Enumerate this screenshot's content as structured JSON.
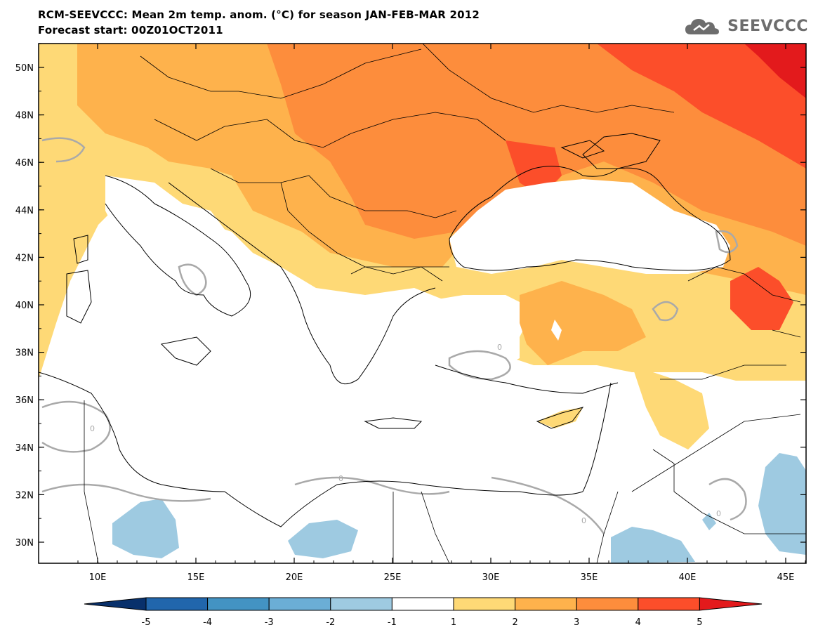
{
  "header": {
    "title": "RCM-SEEVCCC: Mean 2m temp. anom. (°C) for season JAN-FEB-MAR 2012",
    "subtitle": "Forecast start: 00Z01OCT2011",
    "logo_text": "SEEVCCC"
  },
  "map": {
    "lat_labels": [
      "50N",
      "48N",
      "46N",
      "44N",
      "42N",
      "40N",
      "38N",
      "36N",
      "34N",
      "32N",
      "30N"
    ],
    "lon_labels": [
      "10E",
      "15E",
      "20E",
      "25E",
      "30E",
      "35E",
      "40E",
      "45E"
    ],
    "contour_label": "0"
  },
  "colorbar": {
    "labels": [
      "-5",
      "-4",
      "-3",
      "-2",
      "-1",
      "1",
      "2",
      "3",
      "4",
      "5"
    ],
    "colors": [
      "#08306b",
      "#2166ac",
      "#4393c3",
      "#6baed6",
      "#9ecae1",
      "#ffffff",
      "#fed976",
      "#feb24c",
      "#fd8d3c",
      "#fc4e2a",
      "#e31a1c"
    ]
  }
}
